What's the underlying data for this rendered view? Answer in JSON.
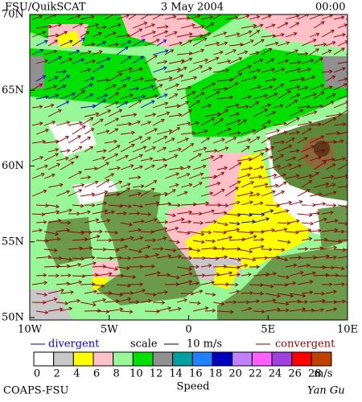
{
  "header": {
    "left": "FSU/QuikSCAT",
    "center": "3 May 2004",
    "right": "00:00"
  },
  "lat_labels": [
    "70N",
    "65N",
    "60N",
    "55N",
    "50N"
  ],
  "lon_labels": [
    "10W",
    "5W",
    "0",
    "5E",
    "10E"
  ],
  "legend": {
    "divergent": "divergent",
    "scale": "scale",
    "scale_value": "10 m/s",
    "convergent": "convergent"
  },
  "colorbar": {
    "labels": [
      0,
      2,
      4,
      6,
      8,
      10,
      12,
      14,
      16,
      18,
      20,
      22,
      24,
      26,
      28
    ],
    "unit": "m/s",
    "title": "Speed",
    "colors": [
      "#ffffff",
      "#c8c8c8",
      "#ffff00",
      "#ffc0c8",
      "#98f898",
      "#00e000",
      "#909090",
      "#00a0a0",
      "#2080ff",
      "#0000c0",
      "#c080ff",
      "#ff60ff",
      "#a040e0",
      "#ff0000",
      "#c04000",
      "#000000"
    ]
  },
  "footer": {
    "left": "COAPS-FSU",
    "right": "Yan Gu"
  }
}
